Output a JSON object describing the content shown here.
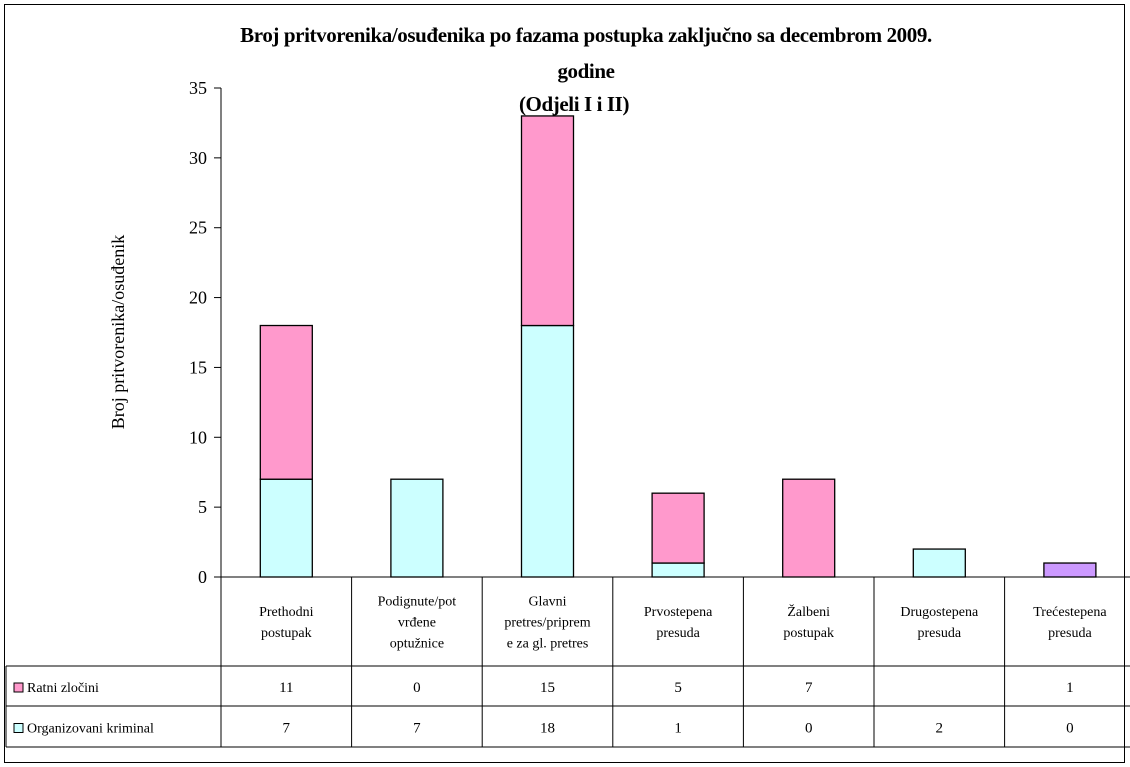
{
  "chart_data": {
    "type": "bar",
    "stacked": true,
    "title": "Broj pritvorenika/osuđenika po fazama postupka zaključno sa decembrom 2009. godine (Odjeli I i II)",
    "title_lines": [
      "Broj pritvorenika/osuđenika po fazama postupka zaključno sa decembrom 2009.",
      "godine",
      "(Odjeli I i II)"
    ],
    "xlabel": "",
    "ylabel": "Broj pritvorenika/osuđenik",
    "ylim": [
      0,
      35
    ],
    "yticks": [
      0,
      5,
      10,
      15,
      20,
      25,
      30,
      35
    ],
    "grid": false,
    "legend_position": "data-table",
    "categories": [
      "Prethodni postupak",
      "Podignute/potvrđene optužnice",
      "Glavni pretres/priprema za gl. pretres",
      "Prvostepena presuda",
      "Žalbeni postupak",
      "Drugostepena presuda",
      "Trećestepena presuda"
    ],
    "category_lines": [
      [
        "Prethodni",
        "postupak"
      ],
      [
        "Podignute/pot",
        "vrđene",
        "optužnice"
      ],
      [
        "Glavni",
        "pretres/priprem",
        "e za gl. pretres"
      ],
      [
        "Prvostepena",
        "presuda"
      ],
      [
        "Žalbeni",
        "postupak"
      ],
      [
        "Drugostepena",
        "presuda"
      ],
      [
        "Trećestepena",
        "presuda"
      ]
    ],
    "series": [
      {
        "name": "Organizovani kriminal",
        "color": "#ccffff",
        "values": [
          7,
          7,
          18,
          1,
          0,
          2,
          0
        ],
        "table_values": [
          "7",
          "7",
          "18",
          "1",
          "0",
          "2",
          "0"
        ]
      },
      {
        "name": "Ratni zločini",
        "color": "#ff99cc",
        "values": [
          11,
          0,
          15,
          5,
          7,
          0,
          1
        ],
        "table_values": [
          "11",
          "0",
          "15",
          "5",
          "7",
          "",
          "1"
        ]
      }
    ],
    "highlight_colors": {
      "trecestepena_bar": "#cc99ff"
    }
  }
}
